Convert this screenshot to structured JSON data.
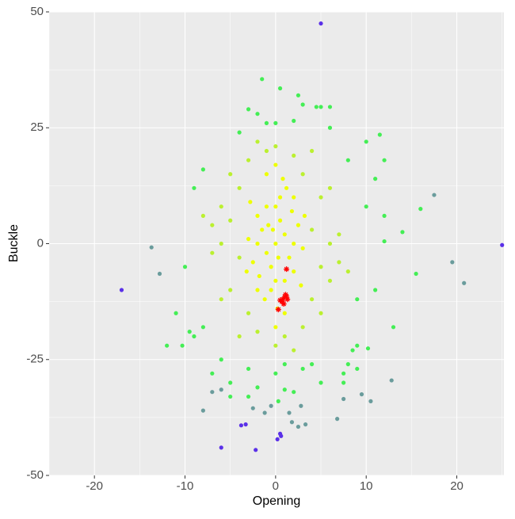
{
  "chart_data": {
    "type": "scatter",
    "x_label": "Opening",
    "y_label": "Buckle",
    "xlim": [
      -25,
      25.2
    ],
    "ylim": [
      -50,
      50
    ],
    "xticks": [
      -20,
      -10,
      0,
      10,
      20
    ],
    "yticks": [
      -50,
      -25,
      0,
      25,
      50
    ],
    "xminorticks": [
      -25,
      -15,
      -5,
      5,
      15,
      25
    ],
    "yminorticks": [
      -37.5,
      -12.5,
      12.5,
      37.5
    ],
    "grid": true,
    "series": [
      {
        "color": "#6a9c9c",
        "marker": "circle",
        "x": [
          -13.7,
          -12.8,
          19.5,
          20.8,
          17.5,
          12.8,
          10.5,
          9.5,
          6.8,
          -8,
          -7,
          -6,
          1.5,
          2.8,
          -1.2,
          1.8,
          3.3,
          2.5,
          -0.5,
          -2.5,
          7.5
        ],
        "y": [
          -0.8,
          -6.5,
          -4,
          -8.5,
          10.5,
          -29.5,
          -34,
          -32.5,
          -37.8,
          -36,
          -32,
          -31.5,
          -36.5,
          -35,
          -36.5,
          -38.5,
          -39,
          -39.5,
          -35,
          -35.5,
          -33.5
        ]
      },
      {
        "color": "#44ee55",
        "marker": "circle",
        "x": [
          -8,
          8,
          -9,
          9,
          -6,
          6,
          -3,
          3,
          0,
          1,
          -1,
          0,
          2,
          -4,
          4,
          9,
          -9,
          10,
          -10,
          11,
          -11,
          11,
          -8,
          10,
          12,
          -12,
          12,
          14,
          15.5,
          16,
          11.5,
          7.5,
          -7,
          5,
          -5,
          2,
          -2,
          3,
          -3,
          5,
          6,
          2.5,
          -1.5,
          0.5,
          4.5,
          -2,
          8,
          -9.5,
          12,
          7.5,
          9,
          -10.3,
          10.2,
          8.5,
          13,
          -3,
          0.3,
          1,
          -5
        ],
        "y": [
          -18,
          18,
          12,
          -12,
          -25,
          25,
          -27,
          -27,
          -28,
          -26,
          26,
          26,
          26.5,
          24,
          -26,
          -22,
          -20,
          8,
          -5,
          -10,
          -15,
          14,
          16,
          22,
          6,
          -22,
          0.5,
          2.5,
          -6.5,
          7.5,
          23.5,
          -28,
          -28,
          -30,
          -30,
          -32,
          -31,
          30,
          29,
          29.5,
          29.5,
          32,
          35.5,
          33.5,
          29.5,
          28,
          -26,
          -19,
          18,
          -30,
          -27,
          -22,
          -22.6,
          -23,
          -18,
          -33,
          -34,
          -31.5,
          -33
        ]
      },
      {
        "color": "#bbf030",
        "marker": "circle",
        "x": [
          -4,
          4,
          -5,
          5,
          -3,
          3,
          -4,
          4,
          -6,
          6,
          -2,
          2,
          5,
          -5,
          6,
          -6,
          1,
          -1,
          3,
          -3,
          7,
          -7,
          7,
          -7,
          -5,
          5,
          4,
          -4,
          0,
          0,
          8,
          -8,
          6,
          -6,
          2,
          -2
        ],
        "y": [
          -3,
          3,
          5,
          -5,
          -15,
          15,
          12,
          -12,
          0,
          0,
          -19,
          19,
          10,
          -10,
          -8,
          8,
          -20,
          20,
          -18,
          18,
          2,
          -2,
          -4,
          4,
          15,
          -15,
          20,
          -20,
          -22,
          21,
          -6,
          6,
          12,
          -12,
          -23,
          22
        ]
      },
      {
        "color": "#eeff00",
        "marker": "circle",
        "x": [
          0,
          1,
          -1,
          0.5,
          -0.5,
          1.5,
          -1.5,
          2,
          -2,
          0,
          0,
          1,
          -1,
          2.5,
          -2.5,
          2,
          -2,
          0.5,
          -0.5,
          1.2,
          -1.2,
          3,
          -3,
          0.2,
          0.8,
          -0.8,
          1.8,
          -1.8,
          2.8,
          -2.8,
          3.2,
          -3.2,
          0.3,
          -0.3,
          1,
          -1,
          2,
          -2,
          0,
          0
        ],
        "y": [
          0,
          2,
          -2,
          5,
          -5,
          -3,
          3,
          0,
          0,
          8,
          -8,
          -8,
          8,
          4,
          -4,
          -6,
          6,
          10,
          -10,
          12,
          -12,
          -1,
          1,
          -14,
          14,
          4,
          7,
          -7,
          -9,
          9,
          6,
          -6,
          -3,
          3,
          -15,
          15,
          10,
          -10,
          -18,
          17
        ]
      },
      {
        "color": "#5a30e8",
        "marker": "circle",
        "x": [
          5,
          -17,
          25,
          -6,
          -2.2,
          0.2,
          0.6,
          0.5,
          -3.8,
          -3.3
        ],
        "y": [
          47.5,
          -10,
          -0.3,
          -44,
          -44.5,
          -42.2,
          -41.5,
          -41,
          -39.2,
          -39
        ]
      },
      {
        "color": "#ff0000",
        "marker": "asterisk",
        "x": [
          1.2,
          1,
          0.8,
          1.1,
          0.7,
          1.3,
          0.9,
          0.5,
          0.3,
          1.2
        ],
        "y": [
          -5.5,
          -11.5,
          -12,
          -11,
          -12.5,
          -12,
          -13,
          -12.2,
          -14.2,
          -11.3
        ]
      }
    ]
  }
}
